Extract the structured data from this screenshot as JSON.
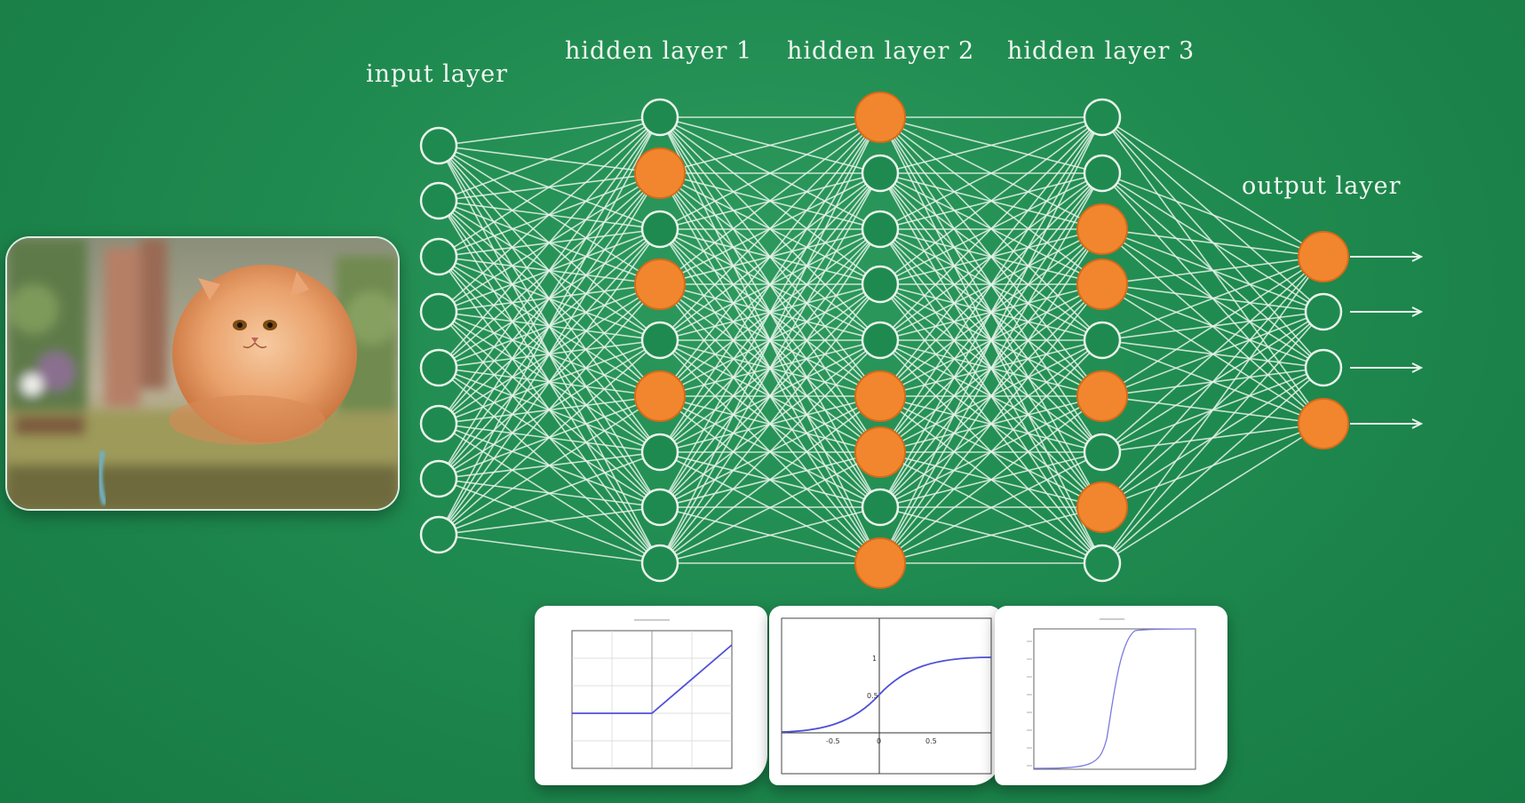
{
  "layers": [
    {
      "id": "input",
      "label": "input layer",
      "count": 8,
      "active": []
    },
    {
      "id": "hidden1",
      "label": "hidden layer 1",
      "count": 9,
      "active": [
        1,
        3,
        5
      ]
    },
    {
      "id": "hidden2",
      "label": "hidden layer 2",
      "count": 9,
      "active": [
        0,
        5,
        6,
        8
      ]
    },
    {
      "id": "hidden3",
      "label": "hidden layer 3",
      "count": 9,
      "active": [
        2,
        3,
        5,
        7
      ]
    },
    {
      "id": "output",
      "label": "output layer",
      "count": 4,
      "active": [
        0,
        3
      ]
    }
  ],
  "colors": {
    "active_node": "#f2862e",
    "active_border": "#d96a1a",
    "edge": "#e8f3ea",
    "arrow": "#e8f3ea",
    "plot_line": "#5050d8"
  },
  "image": {
    "subject": "orange fluffy cat leaping over grass"
  },
  "activation_plots": [
    {
      "id": "relu",
      "shape": "relu",
      "ticks": [
        "-0.5",
        "0",
        "0.5"
      ],
      "tick_labels_visible": false
    },
    {
      "id": "tanh",
      "shape": "tanh",
      "ticks": [
        "-0.5",
        "0",
        "0.5"
      ],
      "y_ticks": [
        "1",
        "0.5"
      ],
      "tick_labels_visible": true
    },
    {
      "id": "sigmoid",
      "shape": "sigmoid",
      "ticks": [],
      "tick_labels_visible": false
    }
  ]
}
